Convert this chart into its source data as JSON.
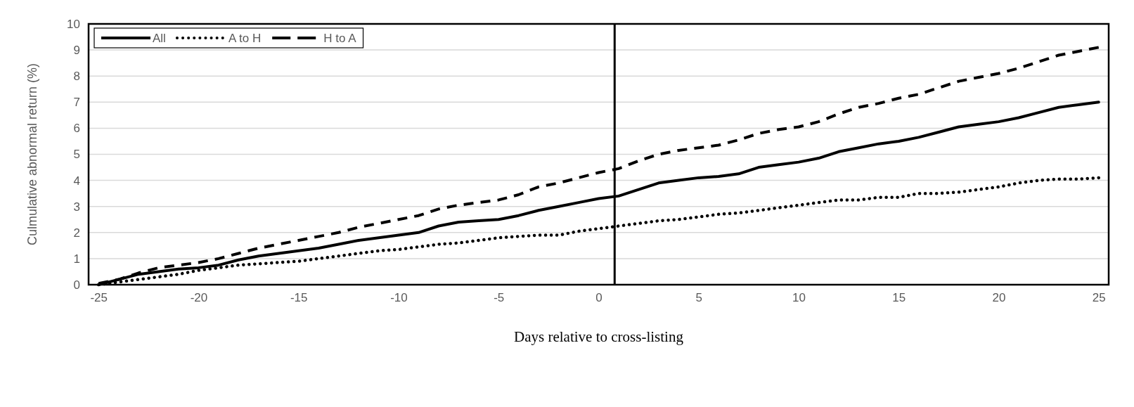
{
  "chart_data": {
    "type": "line",
    "xlabel": "Days relative to cross-listing",
    "ylabel": "Culmulative abnormal return (%)",
    "x": [
      -25,
      -24,
      -23,
      -22,
      -21,
      -20,
      -19,
      -18,
      -17,
      -16,
      -15,
      -14,
      -13,
      -12,
      -11,
      -10,
      -9,
      -8,
      -7,
      -6,
      -5,
      -4,
      -3,
      -2,
      -1,
      0,
      1,
      2,
      3,
      4,
      5,
      6,
      7,
      8,
      9,
      10,
      11,
      12,
      13,
      14,
      15,
      16,
      17,
      18,
      19,
      20,
      21,
      22,
      23,
      24,
      25
    ],
    "series": [
      {
        "name": "All",
        "color": "#000000",
        "line_style": "solid",
        "values": [
          0,
          0.2,
          0.4,
          0.5,
          0.6,
          0.65,
          0.75,
          0.95,
          1.1,
          1.2,
          1.3,
          1.4,
          1.55,
          1.7,
          1.8,
          1.9,
          2.0,
          2.25,
          2.4,
          2.45,
          2.5,
          2.65,
          2.85,
          3.0,
          3.15,
          3.3,
          3.4,
          3.65,
          3.9,
          4.0,
          4.1,
          4.15,
          4.25,
          4.5,
          4.6,
          4.7,
          4.85,
          5.1,
          5.25,
          5.4,
          5.5,
          5.65,
          5.85,
          6.05,
          6.15,
          6.25,
          6.4,
          6.6,
          6.8,
          6.9,
          7.0
        ]
      },
      {
        "name": "A to H",
        "color": "#000000",
        "line_style": "dotted",
        "values": [
          0,
          0.1,
          0.2,
          0.3,
          0.4,
          0.55,
          0.65,
          0.75,
          0.8,
          0.85,
          0.9,
          1.0,
          1.1,
          1.2,
          1.3,
          1.35,
          1.45,
          1.55,
          1.6,
          1.7,
          1.8,
          1.85,
          1.9,
          1.9,
          2.05,
          2.15,
          2.25,
          2.35,
          2.45,
          2.5,
          2.6,
          2.7,
          2.75,
          2.85,
          2.95,
          3.05,
          3.15,
          3.25,
          3.25,
          3.35,
          3.35,
          3.5,
          3.5,
          3.55,
          3.65,
          3.75,
          3.9,
          4.0,
          4.05,
          4.05,
          4.1
        ]
      },
      {
        "name": "H to A",
        "color": "#000000",
        "line_style": "dashed",
        "values": [
          0.05,
          0.2,
          0.45,
          0.65,
          0.75,
          0.85,
          1.0,
          1.2,
          1.4,
          1.55,
          1.7,
          1.85,
          2.0,
          2.2,
          2.35,
          2.5,
          2.65,
          2.9,
          3.05,
          3.15,
          3.25,
          3.45,
          3.75,
          3.9,
          4.1,
          4.3,
          4.45,
          4.75,
          5.0,
          5.15,
          5.25,
          5.35,
          5.55,
          5.8,
          5.95,
          6.05,
          6.25,
          6.55,
          6.8,
          6.95,
          7.15,
          7.3,
          7.55,
          7.8,
          7.95,
          8.1,
          8.3,
          8.55,
          8.8,
          8.95,
          9.1
        ]
      }
    ],
    "xlim": [
      -25.5,
      25.5
    ],
    "xticks": [
      -25,
      -20,
      -15,
      -10,
      -5,
      0,
      5,
      10,
      15,
      20,
      25
    ],
    "ylim": [
      0,
      10
    ],
    "yticks": [
      0,
      1,
      2,
      3,
      4,
      5,
      6,
      7,
      8,
      9,
      10
    ],
    "grid": "y",
    "legend": "top left",
    "marker": "none",
    "ref_lines": [
      {
        "axis": "x",
        "value": 0.8,
        "color": "#000000",
        "line_style": "solid"
      }
    ]
  }
}
